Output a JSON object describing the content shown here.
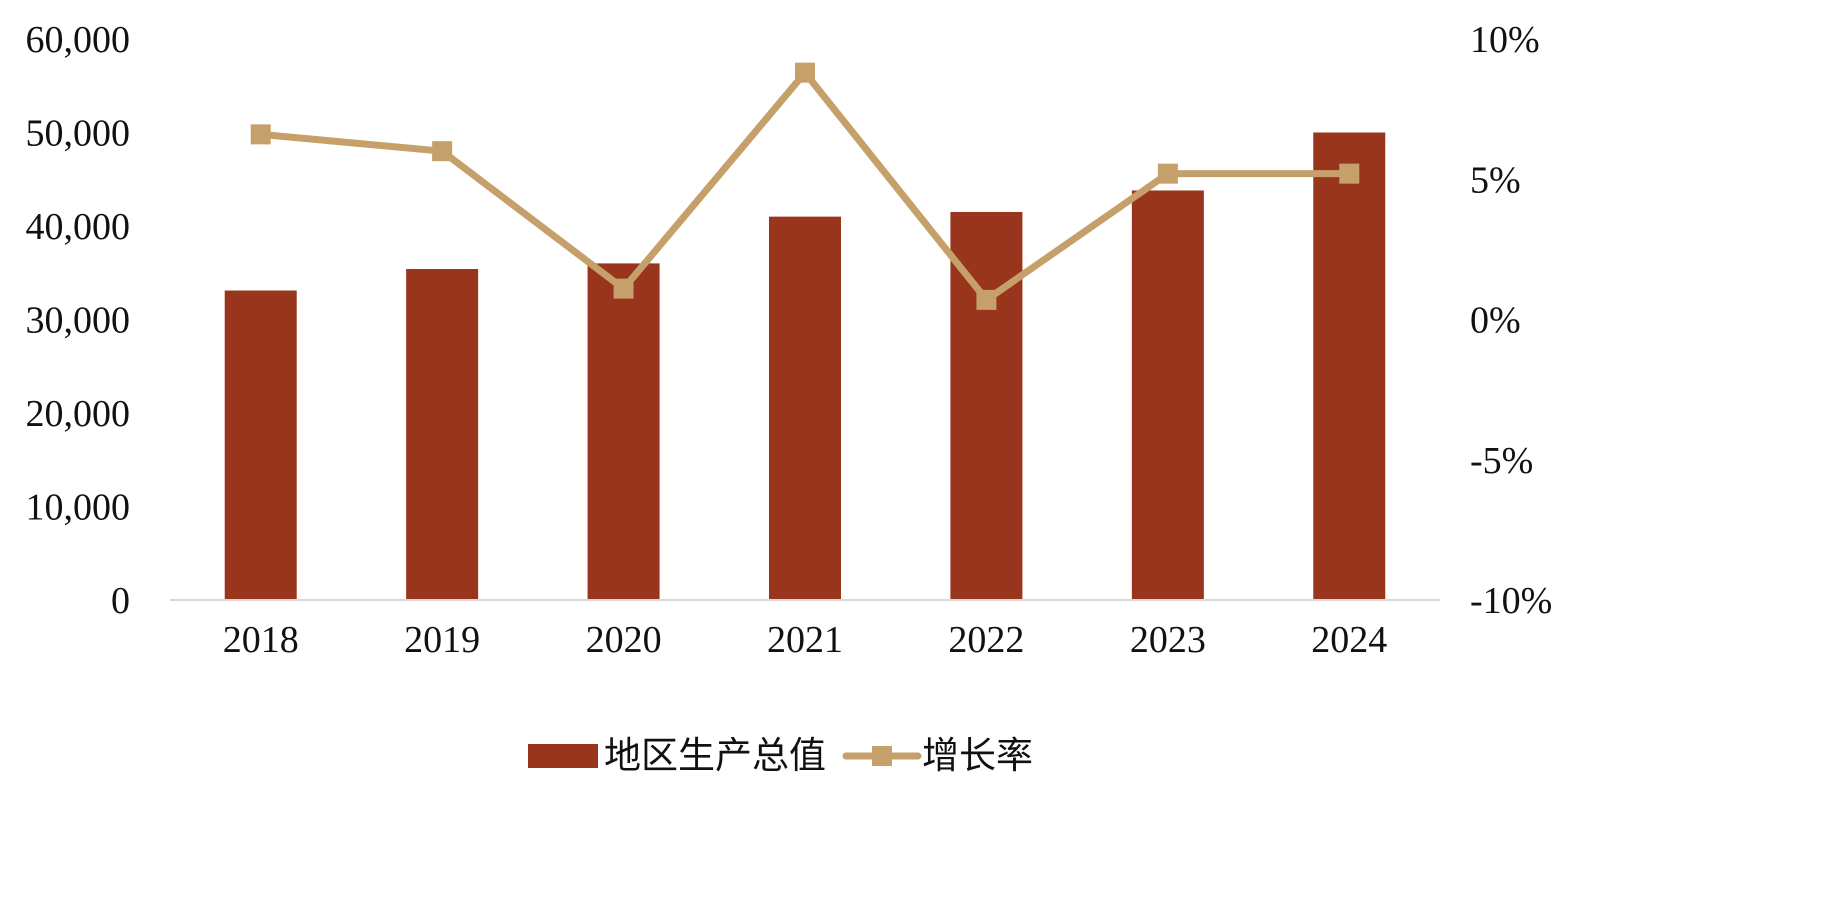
{
  "chart_data": {
    "type": "bar",
    "categories": [
      "2018",
      "2019",
      "2020",
      "2021",
      "2022",
      "2023",
      "2024"
    ],
    "series": [
      {
        "name": "地区生产总值",
        "type": "bar",
        "axis": "left",
        "values": [
          33100,
          35400,
          36000,
          41000,
          41500,
          43800,
          50000
        ],
        "color": "#99351c"
      },
      {
        "name": "增长率",
        "type": "line",
        "axis": "right",
        "values": [
          6.6,
          6.0,
          1.1,
          8.8,
          0.7,
          5.2,
          5.2
        ],
        "color": "#c6a06a",
        "marker": "square"
      }
    ],
    "y_left": {
      "ylim": [
        0,
        60000
      ],
      "ticks": [
        0,
        10000,
        20000,
        30000,
        40000,
        50000,
        60000
      ],
      "tick_labels": [
        "0",
        "10,000",
        "20,000",
        "30,000",
        "40,000",
        "50,000",
        "60,000"
      ]
    },
    "y_right": {
      "ylim": [
        -10,
        10
      ],
      "ticks": [
        -10,
        -5,
        0,
        5,
        10
      ],
      "tick_labels": [
        "-10%",
        "-5%",
        "0%",
        "5%",
        "10%"
      ]
    },
    "title": "",
    "xlabel": "",
    "ylabel": "",
    "grid": false,
    "legend_position": "bottom-center",
    "baseline_color": "#d9d9d9"
  }
}
